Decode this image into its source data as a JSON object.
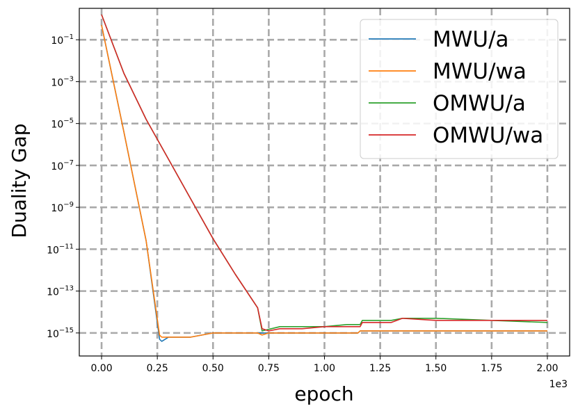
{
  "chart_data": {
    "type": "line",
    "xlabel": "epoch",
    "ylabel": "Duality Gap",
    "x_offset_label": "1e3",
    "xlim": [
      -0.1,
      2.1
    ],
    "x_ticks": [
      0,
      0.25,
      0.5,
      0.75,
      1.0,
      1.25,
      1.5,
      1.75,
      2.0
    ],
    "x_tick_labels": [
      "0.00",
      "0.25",
      "0.50",
      "0.75",
      "1.00",
      "1.25",
      "1.50",
      "1.75",
      "2.00"
    ],
    "y_scale": "log",
    "ylim_exponent": [
      -16.1,
      0.5
    ],
    "y_tick_exponents": [
      -1,
      -3,
      -5,
      -7,
      -9,
      -11,
      -13,
      -15
    ],
    "y_tick_base": "10",
    "y_tick_exps": [
      "−1",
      "−3",
      "−5",
      "−7",
      "−9",
      "−11",
      "−13",
      "−15"
    ],
    "grid": true,
    "legend_position": "top-right",
    "series": [
      {
        "name": "MWU/a",
        "color": "#1f77b4",
        "points": [
          [
            0.0,
            -0.3
          ],
          [
            0.1,
            -5.4
          ],
          [
            0.2,
            -10.6
          ],
          [
            0.26,
            -15.3
          ],
          [
            0.27,
            -15.4
          ],
          [
            0.3,
            -15.2
          ],
          [
            0.4,
            -15.2
          ],
          [
            0.45,
            -15.1
          ],
          [
            0.5,
            -15.0
          ],
          [
            0.7,
            -15.0
          ],
          [
            0.75,
            -15.0
          ],
          [
            1.0,
            -15.0
          ],
          [
            1.15,
            -15.0
          ],
          [
            1.16,
            -14.9
          ],
          [
            1.5,
            -14.9
          ],
          [
            2.0,
            -14.9
          ]
        ]
      },
      {
        "name": "MWU/wa",
        "color": "#ff7f0e",
        "points": [
          [
            0.0,
            -0.3
          ],
          [
            0.1,
            -5.4
          ],
          [
            0.2,
            -10.6
          ],
          [
            0.26,
            -15.1
          ],
          [
            0.27,
            -15.2
          ],
          [
            0.3,
            -15.2
          ],
          [
            0.4,
            -15.2
          ],
          [
            0.45,
            -15.1
          ],
          [
            0.5,
            -15.0
          ],
          [
            0.7,
            -15.0
          ],
          [
            0.72,
            -15.1
          ],
          [
            0.75,
            -15.0
          ],
          [
            1.0,
            -15.0
          ],
          [
            1.15,
            -15.0
          ],
          [
            1.16,
            -14.9
          ],
          [
            1.5,
            -14.9
          ],
          [
            2.0,
            -14.9
          ]
        ]
      },
      {
        "name": "OMWU/a",
        "color": "#2ca02c",
        "points": [
          [
            0.0,
            0.2
          ],
          [
            0.1,
            -2.6
          ],
          [
            0.2,
            -4.8
          ],
          [
            0.3,
            -6.7
          ],
          [
            0.4,
            -8.6
          ],
          [
            0.5,
            -10.5
          ],
          [
            0.6,
            -12.2
          ],
          [
            0.7,
            -13.8
          ],
          [
            0.72,
            -14.9
          ],
          [
            0.8,
            -14.7
          ],
          [
            0.9,
            -14.7
          ],
          [
            1.0,
            -14.7
          ],
          [
            1.1,
            -14.6
          ],
          [
            1.16,
            -14.6
          ],
          [
            1.17,
            -14.4
          ],
          [
            1.3,
            -14.4
          ],
          [
            1.35,
            -14.3
          ],
          [
            1.5,
            -14.3
          ],
          [
            1.75,
            -14.4
          ],
          [
            2.0,
            -14.5
          ]
        ]
      },
      {
        "name": "OMWU/wa",
        "color": "#d62728",
        "points": [
          [
            0.0,
            0.2
          ],
          [
            0.1,
            -2.6
          ],
          [
            0.2,
            -4.8
          ],
          [
            0.3,
            -6.7
          ],
          [
            0.4,
            -8.6
          ],
          [
            0.5,
            -10.5
          ],
          [
            0.6,
            -12.2
          ],
          [
            0.7,
            -13.8
          ],
          [
            0.72,
            -14.8
          ],
          [
            0.75,
            -14.9
          ],
          [
            0.8,
            -14.8
          ],
          [
            0.9,
            -14.8
          ],
          [
            1.0,
            -14.7
          ],
          [
            1.1,
            -14.7
          ],
          [
            1.16,
            -14.7
          ],
          [
            1.17,
            -14.5
          ],
          [
            1.3,
            -14.5
          ],
          [
            1.35,
            -14.3
          ],
          [
            1.5,
            -14.4
          ],
          [
            1.75,
            -14.4
          ],
          [
            2.0,
            -14.4
          ]
        ]
      }
    ]
  }
}
